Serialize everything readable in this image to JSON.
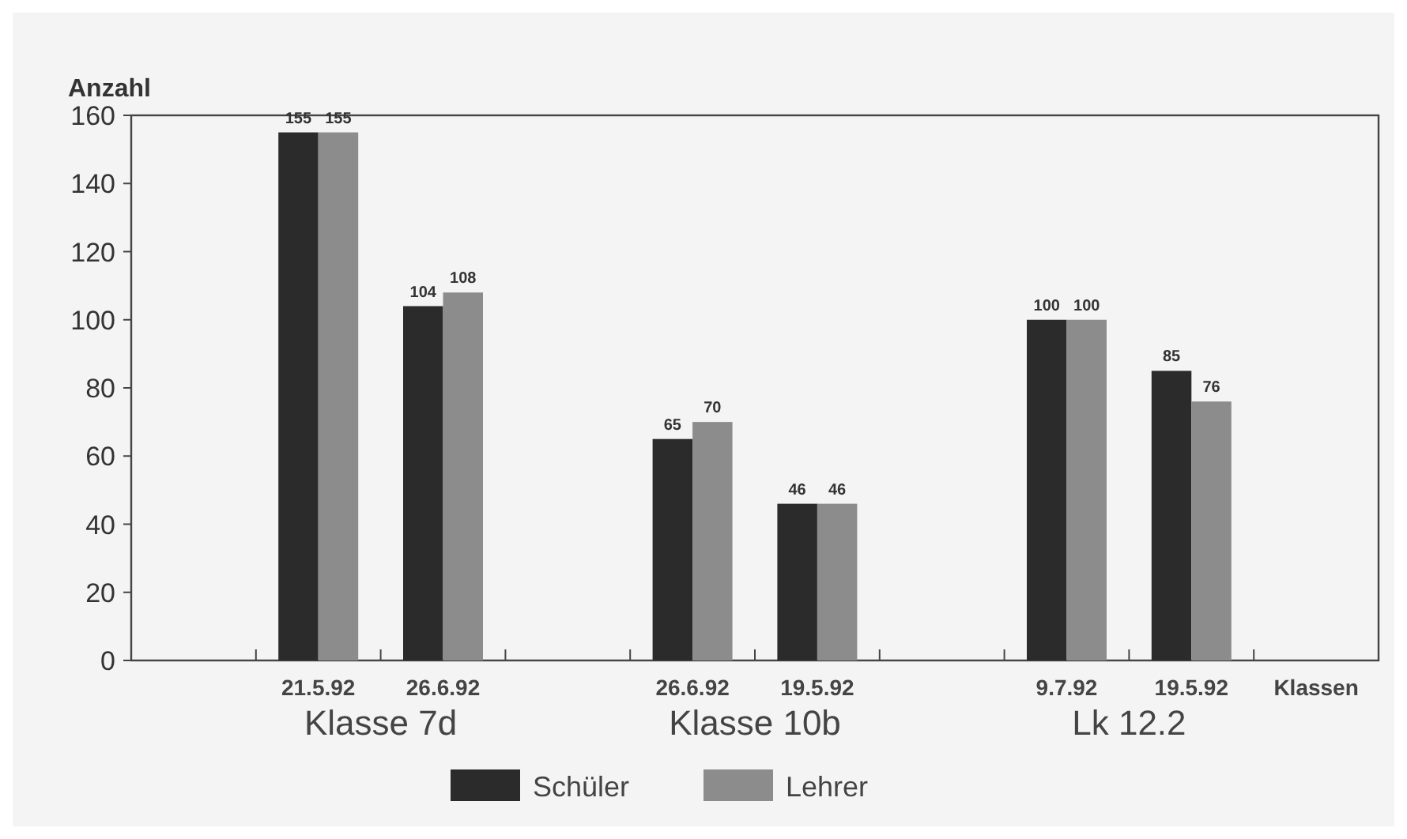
{
  "chart_data": {
    "type": "bar",
    "ylabel": "Anzahl",
    "xlabel": "Klassen",
    "categories": [
      null,
      "21.5.92",
      "26.6.92",
      null,
      "26.6.92",
      "19.5.92",
      null,
      "9.7.92",
      "19.5.92",
      null
    ],
    "series": [
      {
        "name": "Schüler",
        "color": "#2b2b2b",
        "values": [
          null,
          155,
          104,
          null,
          65,
          46,
          null,
          100,
          85,
          null
        ]
      },
      {
        "name": "Lehrer",
        "color": "#8c8c8c",
        "values": [
          null,
          155,
          108,
          null,
          70,
          46,
          null,
          100,
          76,
          null
        ]
      }
    ],
    "data_labels": true,
    "ylim": [
      0,
      160
    ],
    "yticks": [
      0,
      20,
      40,
      60,
      80,
      100,
      120,
      140,
      160
    ],
    "grid": false,
    "legend": "bottom",
    "annotations": [
      "Klasse 7d",
      "Klasse 10b",
      "Lk 12.2"
    ]
  }
}
